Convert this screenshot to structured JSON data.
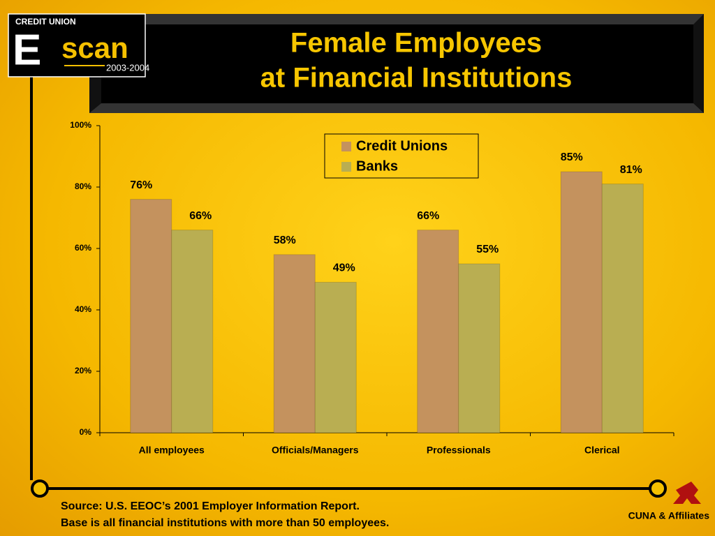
{
  "chart_data": {
    "type": "bar",
    "title": [
      "Female Employees",
      "at Financial Institutions"
    ],
    "categories": [
      "All employees",
      "Officials/Managers",
      "Professionals",
      "Clerical"
    ],
    "series": [
      {
        "name": "Credit Unions",
        "color": "#c4925e",
        "values": [
          76,
          58,
          66,
          85
        ],
        "value_labels": [
          "76%",
          "58%",
          "66%",
          "85%"
        ]
      },
      {
        "name": "Banks",
        "color": "#b9ae52",
        "values": [
          66,
          49,
          55,
          81
        ],
        "value_labels": [
          "66%",
          "49%",
          "55%",
          "81%"
        ]
      }
    ],
    "ylim": [
      0,
      100
    ],
    "yticks": [
      {
        "value": 0,
        "label": "0%"
      },
      {
        "value": 20,
        "label": "20%"
      },
      {
        "value": 40,
        "label": "40%"
      },
      {
        "value": 60,
        "label": "60%"
      },
      {
        "value": 80,
        "label": "80%"
      },
      {
        "value": 100,
        "label": "100%"
      }
    ],
    "grid": false,
    "legend": "top-center"
  },
  "logo": {
    "brand": "CREDIT UNION",
    "letter": "E",
    "word": "scan",
    "years": "2003-2004"
  },
  "footer": {
    "source": [
      "Source: U.S. EEOC’s 2001 Employer Information Report.",
      "Base is all financial institutions with more than 50 employees."
    ],
    "publisher": "CUNA & Affiliates"
  }
}
